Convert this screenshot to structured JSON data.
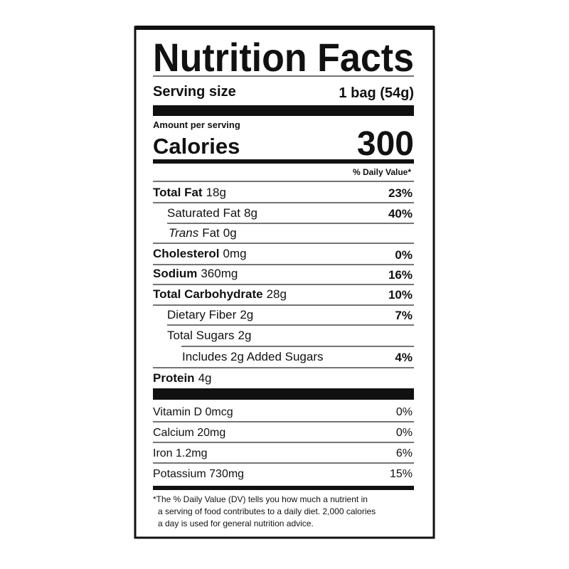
{
  "title": "Nutrition Facts",
  "serving": {
    "label": "Serving size",
    "value": "1 bag (54g)"
  },
  "amount_per_serving": "Amount per serving",
  "calories": {
    "label": "Calories",
    "value": "300"
  },
  "daily_value_header": "% Daily Value*",
  "nutrients": [
    {
      "name": "Total Fat",
      "amount": "18g",
      "dv": "23%"
    },
    {
      "name": "Saturated Fat",
      "amount": "8g",
      "dv": "40%"
    },
    {
      "prefix": "Trans",
      "name": "Fat",
      "amount": "0g"
    },
    {
      "name": "Cholesterol",
      "amount": "0mg",
      "dv": "0%"
    },
    {
      "name": "Sodium",
      "amount": "360mg",
      "dv": "16%"
    },
    {
      "name": "Total Carbohydrate",
      "amount": "28g",
      "dv": "10%"
    },
    {
      "name": "Dietary Fiber",
      "amount": "2g",
      "dv": "7%"
    },
    {
      "name": "Total Sugars",
      "amount": "2g"
    },
    {
      "name": "Includes 2g Added Sugars",
      "dv": "4%"
    },
    {
      "name": "Protein",
      "amount": "4g"
    }
  ],
  "vitamins": [
    {
      "name": "Vitamin D 0mcg",
      "dv": "0%"
    },
    {
      "name": "Calcium 20mg",
      "dv": "0%"
    },
    {
      "name": "Iron 1.2mg",
      "dv": "6%"
    },
    {
      "name": "Potassium 730mg",
      "dv": "15%"
    }
  ],
  "footnote": [
    "*The % Daily Value (DV) tells you how much a nutrient in",
    "a serving of food contributes to a daily diet. 2,000 calories",
    "a day is used for general nutrition advice."
  ]
}
